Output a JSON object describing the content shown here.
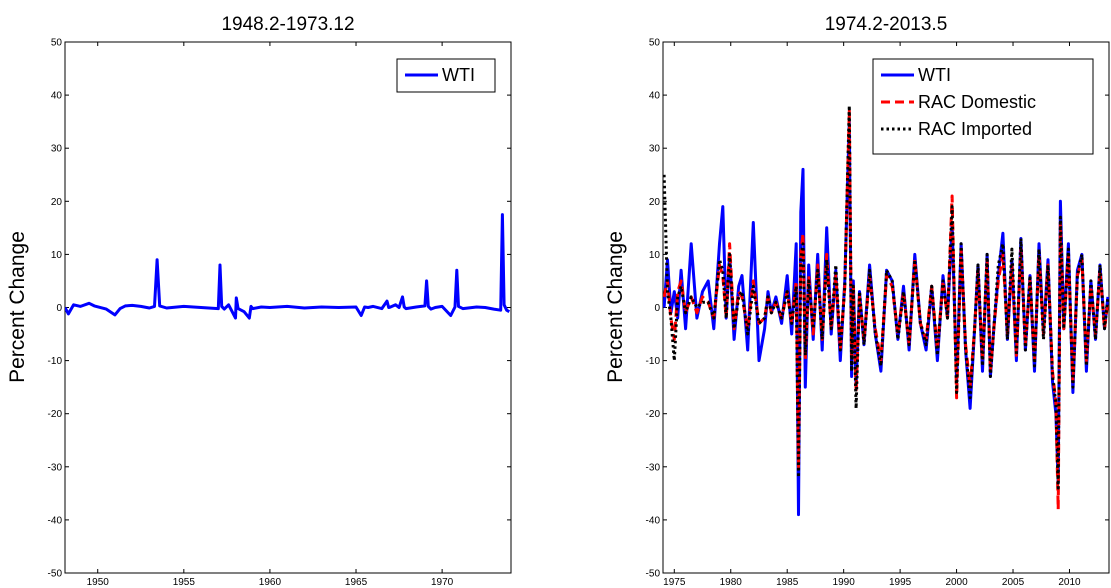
{
  "chart_data": [
    {
      "type": "line",
      "title": "1948.2-1973.12",
      "ylabel": "Percent Change",
      "xlabel": "",
      "xlim": [
        1948.1,
        1974.0
      ],
      "ylim": [
        -50,
        50
      ],
      "yticks": [
        -50,
        -40,
        -30,
        -20,
        -10,
        0,
        10,
        20,
        30,
        40,
        50
      ],
      "xticks": [
        1950,
        1955,
        1960,
        1965,
        1970
      ],
      "grid": false,
      "legend": "top-right",
      "series": [
        {
          "name": "WTI",
          "color": "#0000ff",
          "dash": "solid",
          "x": [
            1948.1,
            1948.3,
            1948.6,
            1949.0,
            1949.5,
            1949.8,
            1950.5,
            1951.0,
            1951.3,
            1951.6,
            1952.0,
            1952.5,
            1953.0,
            1953.3,
            1953.45,
            1953.6,
            1954.0,
            1955.0,
            1956.0,
            1957.0,
            1957.1,
            1957.2,
            1957.35,
            1957.6,
            1958.0,
            1958.05,
            1958.15,
            1958.5,
            1958.8,
            1958.9,
            1959.0,
            1959.5,
            1960.0,
            1961.0,
            1962.0,
            1963.0,
            1964.0,
            1965.0,
            1965.3,
            1965.5,
            1965.7,
            1966.0,
            1966.5,
            1966.8,
            1966.9,
            1967.0,
            1967.3,
            1967.5,
            1967.7,
            1967.8,
            1967.9,
            1968.5,
            1969.0,
            1969.1,
            1969.2,
            1969.35,
            1969.6,
            1970.0,
            1970.5,
            1970.75,
            1970.85,
            1970.95,
            1971.2,
            1972.0,
            1972.5,
            1973.0,
            1973.4,
            1973.5,
            1973.6,
            1973.75,
            1973.9
          ],
          "values": [
            0,
            -1.2,
            0.5,
            0.2,
            0.8,
            0.3,
            -0.3,
            -1.4,
            -0.2,
            0.3,
            0.4,
            0.2,
            -0.1,
            0.2,
            9.0,
            0.3,
            -0.1,
            0.2,
            0,
            -0.2,
            8.0,
            0.2,
            -0.3,
            0.5,
            -2.0,
            1.8,
            -0.2,
            -0.8,
            -2.0,
            0.2,
            -0.2,
            0.1,
            0,
            0.2,
            -0.1,
            0.1,
            0,
            0.1,
            -1.5,
            0.1,
            0,
            0.2,
            -0.2,
            1.2,
            0,
            0.1,
            0.5,
            0,
            2.0,
            0.1,
            -0.2,
            0.1,
            0.3,
            5.0,
            0.2,
            -0.3,
            0,
            0.2,
            -1.5,
            0.1,
            7.0,
            0.2,
            -0.2,
            0.1,
            0,
            -0.3,
            -0.5,
            17.5,
            0.5,
            -0.5,
            -0.8
          ]
        }
      ]
    },
    {
      "type": "line",
      "title": "1974.2-2013.5",
      "ylabel": "Percent Change",
      "xlabel": "",
      "xlim": [
        1974.0,
        2013.5
      ],
      "ylim": [
        -50,
        50
      ],
      "yticks": [
        -50,
        -40,
        -30,
        -20,
        -10,
        0,
        10,
        20,
        30,
        40,
        50
      ],
      "xticks": [
        1975,
        1980,
        1985,
        1990,
        1995,
        2000,
        2005,
        2010
      ],
      "grid": false,
      "legend": "top-right",
      "series": [
        {
          "name": "WTI",
          "color": "#0000ff",
          "dash": "solid",
          "x": [
            1974.1,
            1974.4,
            1974.7,
            1975.0,
            1975.3,
            1975.6,
            1976.0,
            1976.5,
            1977.0,
            1977.5,
            1978.0,
            1978.5,
            1979.0,
            1979.3,
            1979.6,
            1979.9,
            1980.3,
            1980.7,
            1981.0,
            1981.5,
            1982.0,
            1982.5,
            1983.0,
            1983.3,
            1983.6,
            1984.0,
            1984.5,
            1985.0,
            1985.4,
            1985.8,
            1986.0,
            1986.2,
            1986.4,
            1986.6,
            1986.9,
            1987.3,
            1987.7,
            1988.1,
            1988.5,
            1988.9,
            1989.3,
            1989.7,
            1990.1,
            1990.5,
            1990.7,
            1990.85,
            1991.1,
            1991.4,
            1991.8,
            1992.3,
            1992.8,
            1993.3,
            1993.8,
            1994.3,
            1994.8,
            1995.3,
            1995.8,
            1996.3,
            1996.8,
            1997.3,
            1997.8,
            1998.3,
            1998.8,
            1999.2,
            1999.6,
            2000.0,
            2000.4,
            2000.8,
            2001.2,
            2001.6,
            2001.9,
            2002.3,
            2002.7,
            2003.0,
            2003.3,
            2003.7,
            2004.1,
            2004.5,
            2004.9,
            2005.3,
            2005.7,
            2006.1,
            2006.5,
            2006.9,
            2007.3,
            2007.7,
            2008.1,
            2008.5,
            2008.8,
            2009.0,
            2009.2,
            2009.5,
            2009.9,
            2010.3,
            2010.7,
            2011.1,
            2011.5,
            2011.9,
            2012.3,
            2012.7,
            2013.1,
            2013.4
          ],
          "values": [
            0,
            9,
            -1,
            3,
            -2,
            7,
            -4,
            12,
            -2,
            3,
            5,
            -4,
            12,
            19,
            -2,
            10,
            -6,
            4,
            6,
            -8,
            16,
            -10,
            -4,
            3,
            -1,
            2,
            -3,
            6,
            -5,
            12,
            -39,
            18,
            26,
            -15,
            8,
            -6,
            10,
            -8,
            15,
            -5,
            7,
            -10,
            5,
            35,
            -13,
            5,
            -15,
            3,
            -7,
            8,
            -5,
            -12,
            7,
            5,
            -6,
            4,
            -8,
            10,
            -3,
            -8,
            4,
            -10,
            6,
            -2,
            16,
            -14,
            12,
            -8,
            -19,
            -4,
            8,
            -12,
            10,
            -13,
            -4,
            6,
            14,
            -6,
            9,
            -10,
            13,
            -8,
            6,
            -12,
            12,
            -5,
            9,
            -14,
            -20,
            -33,
            20,
            -4,
            12,
            -16,
            7,
            10,
            -12,
            5,
            -6,
            8,
            -4,
            2
          ]
        },
        {
          "name": "RAC Domestic",
          "color": "#ff0000",
          "dash": "dashed",
          "x": [
            1974.1,
            1974.4,
            1974.7,
            1975.0,
            1975.3,
            1975.6,
            1976.0,
            1976.5,
            1977.0,
            1977.5,
            1978.0,
            1978.5,
            1979.0,
            1979.3,
            1979.6,
            1979.9,
            1980.3,
            1980.7,
            1981.0,
            1981.5,
            1982.0,
            1982.5,
            1983.0,
            1983.3,
            1983.6,
            1984.0,
            1984.5,
            1985.0,
            1985.4,
            1985.8,
            1986.0,
            1986.2,
            1986.4,
            1986.6,
            1986.9,
            1987.3,
            1987.7,
            1988.1,
            1988.5,
            1988.9,
            1989.3,
            1989.7,
            1990.1,
            1990.5,
            1990.7,
            1990.85,
            1991.1,
            1991.4,
            1991.8,
            1992.3,
            1992.8,
            1993.3,
            1993.8,
            1994.3,
            1994.8,
            1995.3,
            1995.8,
            1996.3,
            1996.8,
            1997.3,
            1997.8,
            1998.3,
            1998.8,
            1999.2,
            1999.6,
            2000.0,
            2000.4,
            2000.8,
            2001.2,
            2001.6,
            2001.9,
            2002.3,
            2002.7,
            2003.0,
            2003.3,
            2003.7,
            2004.1,
            2004.5,
            2004.9,
            2005.3,
            2005.7,
            2006.1,
            2006.5,
            2006.9,
            2007.3,
            2007.7,
            2008.1,
            2008.5,
            2008.8,
            2009.0,
            2009.2,
            2009.5,
            2009.9,
            2010.3,
            2010.7,
            2011.1,
            2011.5,
            2011.9,
            2012.3,
            2012.7,
            2013.1,
            2013.4
          ],
          "values": [
            2,
            5,
            -2,
            -6,
            3,
            5,
            -1,
            2,
            -1,
            2,
            1,
            -2,
            8,
            6,
            -2,
            12,
            -4,
            3,
            2,
            -4,
            5,
            -3,
            -2,
            2,
            -1,
            1,
            -2,
            3,
            -3,
            5,
            -30,
            10,
            14,
            -10,
            6,
            -5,
            8,
            -6,
            10,
            -4,
            6,
            -8,
            4,
            37,
            -10,
            4,
            -16,
            2,
            -6,
            6,
            -4,
            -10,
            6,
            4,
            -5,
            3,
            -7,
            9,
            -3,
            -6,
            4,
            -8,
            5,
            -2,
            21,
            -17,
            11,
            -7,
            -15,
            -4,
            7,
            -10,
            9,
            -12,
            -4,
            5,
            10,
            -5,
            8,
            -9,
            11,
            -7,
            5,
            -10,
            10,
            -5,
            8,
            -12,
            -18,
            -38,
            16,
            -4,
            10,
            -14,
            6,
            9,
            -10,
            4,
            -5,
            7,
            -4,
            1
          ]
        },
        {
          "name": "RAC Imported",
          "color": "#000000",
          "dash": "dotted",
          "x": [
            1974.1,
            1974.4,
            1974.7,
            1975.0,
            1975.3,
            1975.6,
            1976.0,
            1976.5,
            1977.0,
            1977.5,
            1978.0,
            1978.5,
            1979.0,
            1979.3,
            1979.6,
            1979.9,
            1980.3,
            1980.7,
            1981.0,
            1981.5,
            1982.0,
            1982.5,
            1983.0,
            1983.3,
            1983.6,
            1984.0,
            1984.5,
            1985.0,
            1985.4,
            1985.8,
            1986.0,
            1986.2,
            1986.4,
            1986.6,
            1986.9,
            1987.3,
            1987.7,
            1988.1,
            1988.5,
            1988.9,
            1989.3,
            1989.7,
            1990.1,
            1990.5,
            1990.7,
            1990.85,
            1991.1,
            1991.4,
            1991.8,
            1992.3,
            1992.8,
            1993.3,
            1993.8,
            1994.3,
            1994.8,
            1995.3,
            1995.8,
            1996.3,
            1996.8,
            1997.3,
            1997.8,
            1998.3,
            1998.8,
            1999.2,
            1999.6,
            2000.0,
            2000.4,
            2000.8,
            2001.2,
            2001.6,
            2001.9,
            2002.3,
            2002.7,
            2003.0,
            2003.3,
            2003.7,
            2004.1,
            2004.5,
            2004.9,
            2005.3,
            2005.7,
            2006.1,
            2006.5,
            2006.9,
            2007.3,
            2007.7,
            2008.1,
            2008.5,
            2008.8,
            2009.0,
            2009.2,
            2009.5,
            2009.9,
            2010.3,
            2010.7,
            2011.1,
            2011.5,
            2011.9,
            2012.3,
            2012.7,
            2013.1,
            2013.4
          ],
          "values": [
            25,
            3,
            -2,
            -10,
            2,
            4,
            -1,
            2,
            0,
            1,
            1,
            -2,
            9,
            7,
            -2,
            10,
            -4,
            2,
            3,
            -5,
            4,
            -3,
            -2,
            2,
            -1,
            1,
            -2,
            3,
            -3,
            4,
            -32,
            9,
            12,
            -9,
            5,
            -4,
            7,
            -6,
            9,
            -4,
            8,
            -8,
            4,
            38,
            -12,
            4,
            -19,
            3,
            -7,
            7,
            -5,
            -11,
            7,
            5,
            -6,
            3,
            -7,
            9,
            -3,
            -7,
            4,
            -9,
            5,
            -2,
            19,
            -16,
            12,
            -8,
            -17,
            -4,
            8,
            -11,
            10,
            -13,
            -4,
            8,
            12,
            -6,
            11,
            -9,
            13,
            -8,
            6,
            -11,
            11,
            -6,
            8,
            -13,
            -18,
            -34,
            17,
            -4,
            11,
            -15,
            6,
            10,
            -11,
            5,
            -6,
            8,
            -4,
            2
          ]
        }
      ]
    }
  ]
}
